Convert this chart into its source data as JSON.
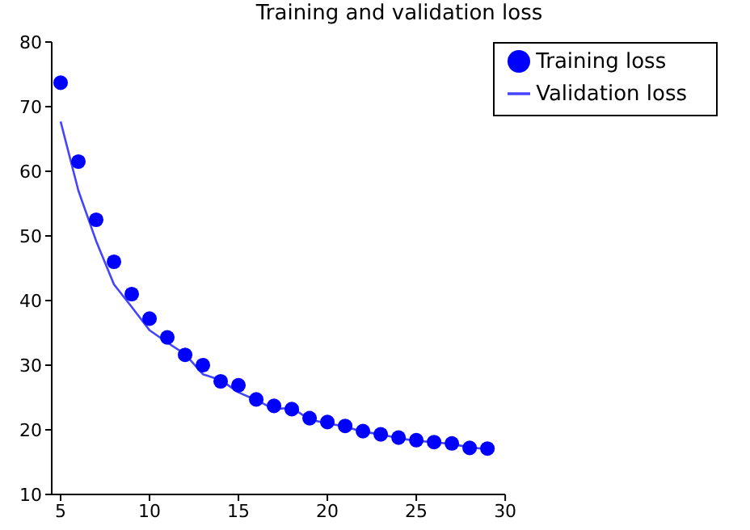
{
  "chart_data": {
    "type": "line",
    "title": "Training and validation loss",
    "x": [
      5,
      6,
      7,
      8,
      9,
      10,
      11,
      12,
      13,
      14,
      15,
      16,
      17,
      18,
      19,
      20,
      21,
      22,
      23,
      24,
      25,
      26,
      27,
      28,
      29
    ],
    "series": [
      {
        "name": "Training loss",
        "type": "scatter",
        "color": "#0000ff",
        "marker": "circle",
        "values": [
          73.7,
          61.5,
          52.5,
          46,
          41,
          37.2,
          34.3,
          31.6,
          30,
          27.5,
          26.9,
          24.7,
          23.7,
          23.2,
          21.8,
          21.2,
          20.6,
          19.8,
          19.3,
          18.8,
          18.4,
          18.1,
          17.9,
          17.2,
          17.1
        ]
      },
      {
        "name": "Validation loss",
        "color": "#4444ff",
        "marker": "none",
        "line_style": "solid",
        "values": [
          67.7,
          57,
          49.2,
          42.5,
          39,
          35.4,
          33.5,
          31.7,
          28.6,
          27.7,
          25.8,
          24.6,
          23.2,
          23.4,
          21.6,
          21,
          20.5,
          19.7,
          19.3,
          18.7,
          18.3,
          18.1,
          17.8,
          17.3,
          17
        ]
      }
    ],
    "xlim": [
      4.5,
      30
    ],
    "xticks": [
      5,
      10,
      15,
      20,
      25,
      30
    ],
    "ylim": [
      10,
      80
    ],
    "yticks": [
      10,
      20,
      30,
      40,
      50,
      60,
      70,
      80
    ],
    "grid": false,
    "legend": "top right"
  }
}
